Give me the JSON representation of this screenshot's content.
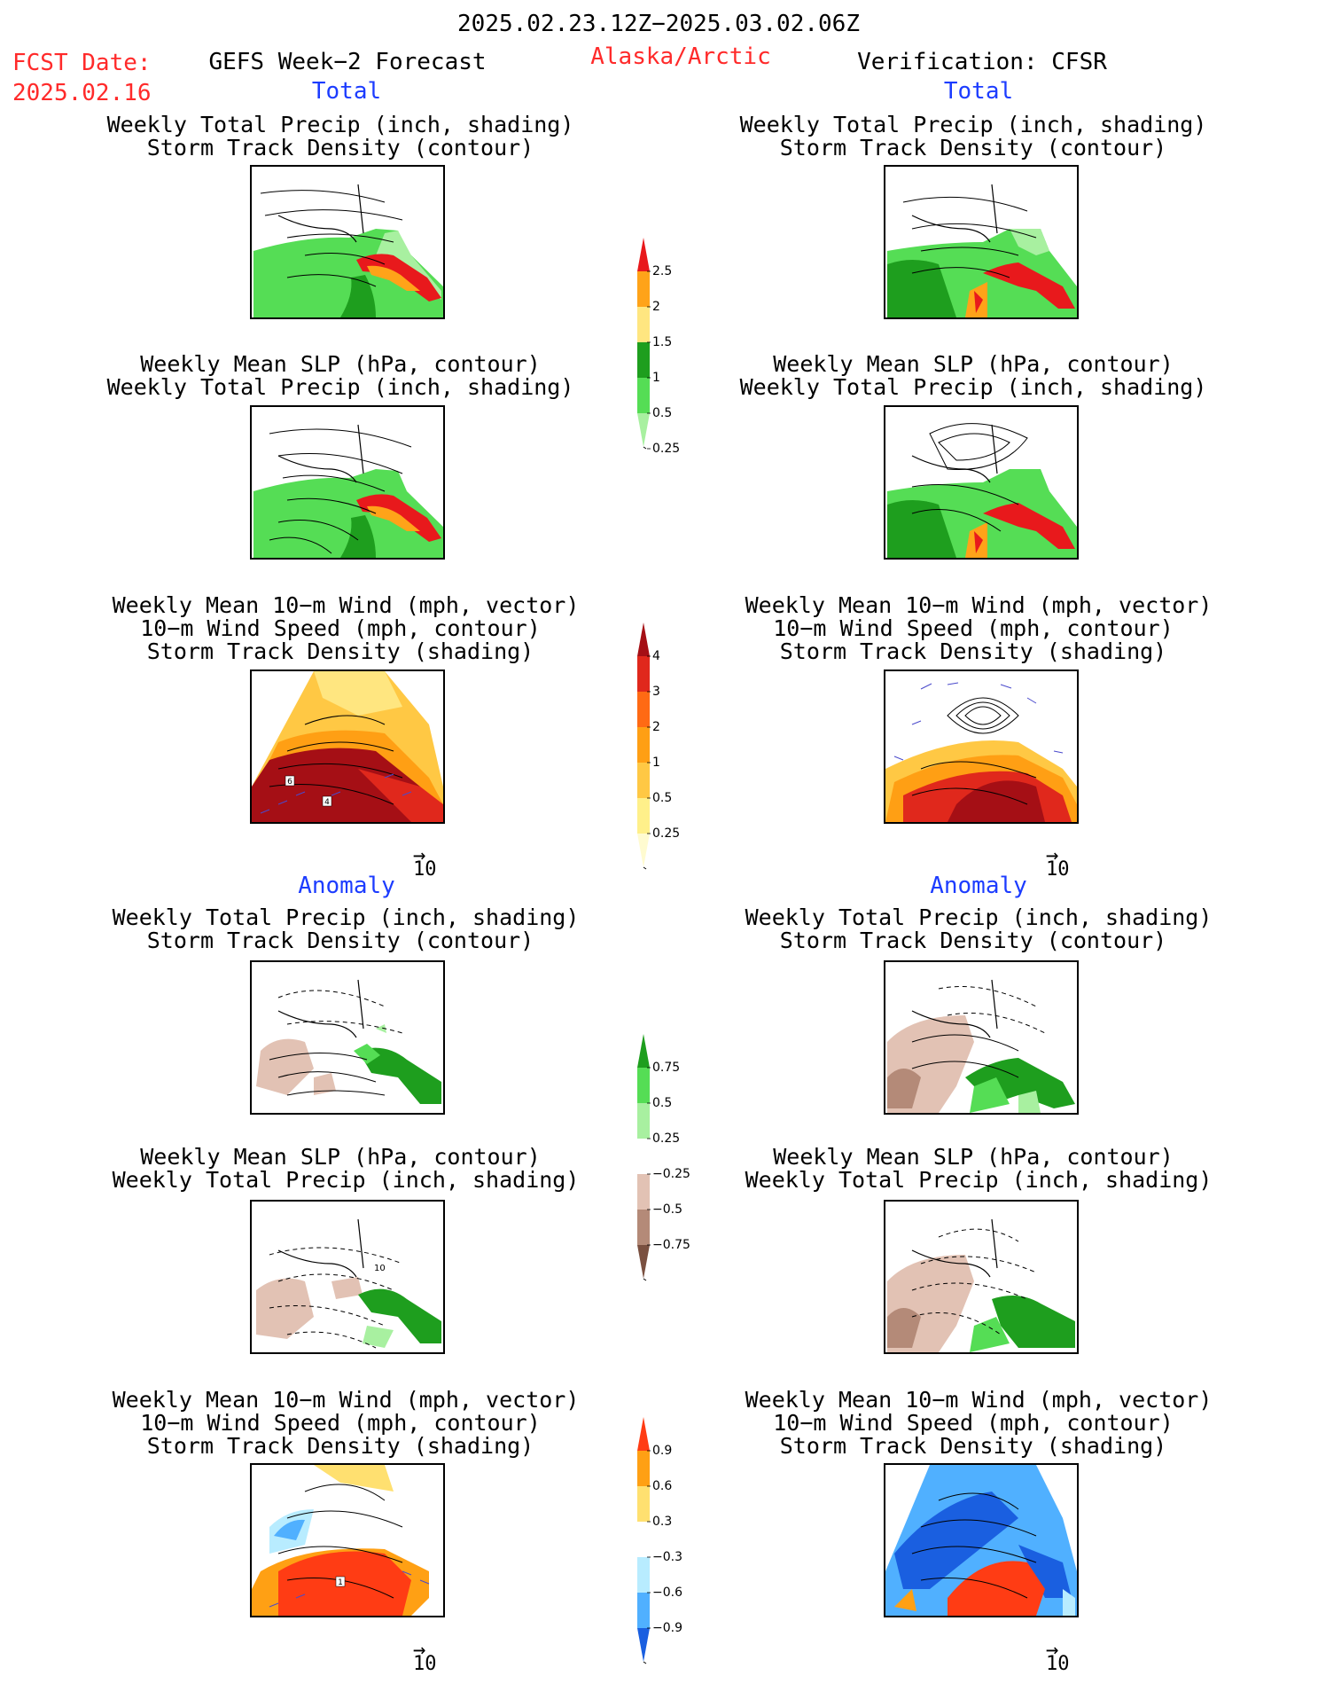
{
  "header": {
    "period": "2025.02.23.12Z−2025.03.02.06Z",
    "fcst_label": "FCST Date:",
    "fcst_date": "2025.02.16",
    "left_title": "GEFS Week−2 Forecast",
    "region": "Alaska/Arctic",
    "right_title": "Verification: CFSR"
  },
  "sections": {
    "total": "Total",
    "anomaly": "Anomaly"
  },
  "panel_titles": {
    "precip_track": [
      "Weekly Total Precip (inch, shading)",
      "Storm Track Density (contour)"
    ],
    "slp_precip": [
      "Weekly Mean SLP (hPa, contour)",
      "Weekly Total Precip (inch, shading)"
    ],
    "wind_track": [
      "Weekly Mean 10−m Wind (mph, vector)",
      "10−m Wind Speed (mph, contour)",
      "Storm Track Density (shading)"
    ]
  },
  "vector_ref": "10",
  "map_labels": {
    "fcst_track_a": "6",
    "fcst_track_b": "4",
    "anom_slp": "10",
    "anom_track": "1"
  },
  "colorbars": {
    "precip_total": {
      "labels": [
        "2.5",
        "2",
        "1.5",
        "1",
        "0.5",
        "0.25"
      ],
      "colors": [
        "#e8191c",
        "#ffa319",
        "#ffe680",
        "#1e9e1e",
        "#55dd55",
        "#a8f0a0"
      ]
    },
    "track_total": {
      "labels": [
        "4",
        "3",
        "2",
        "1",
        "0.5",
        "0.25"
      ],
      "colors": [
        "#a50f15",
        "#e0281c",
        "#ff6a14",
        "#ff9f14",
        "#ffc844",
        "#fff08a",
        "#fffbd0"
      ]
    },
    "precip_anom": {
      "labels": [
        "0.75",
        "0.5",
        "0.25",
        "−0.25",
        "−0.5",
        "−0.75"
      ],
      "colors": [
        "#1e9e1e",
        "#55dd55",
        "#a8f0a0",
        "#ffffff",
        "#e2c2b4",
        "#b48a78",
        "#7a5040"
      ]
    },
    "track_anom": {
      "labels": [
        "0.9",
        "0.6",
        "0.3",
        "−0.3",
        "−0.6",
        "−0.9"
      ],
      "colors": [
        "#ff3c14",
        "#ffa014",
        "#ffe070",
        "#ffffff",
        "#b8ecff",
        "#50b0ff",
        "#1a5fe0"
      ]
    }
  },
  "colors": {
    "green_light": "#a8f0a0",
    "green": "#55dd55",
    "green_dark": "#1e9e1e",
    "yellow": "#ffe680",
    "orange": "#ffa319",
    "red": "#e8191c",
    "brown_light": "#e2c2b4",
    "brown": "#b48a78",
    "blue_light": "#b8ecff",
    "blue": "#50b0ff",
    "blue_dark": "#1a5fe0",
    "maroon": "#a50f15"
  }
}
